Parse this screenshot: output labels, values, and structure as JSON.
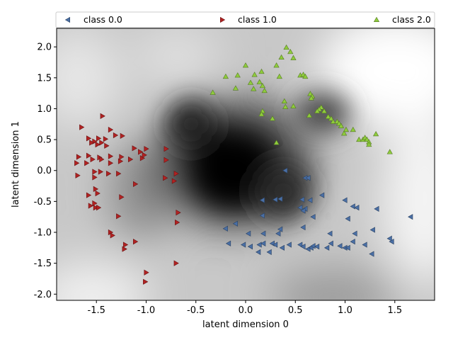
{
  "chart_data": {
    "type": "scatter",
    "title": "",
    "xlabel": "latent dimension 0",
    "ylabel": "latent dimension 1",
    "xlim": [
      -1.9,
      1.9
    ],
    "ylim": [
      -2.1,
      2.3
    ],
    "xticks": [
      "-1.5",
      "-1.0",
      "-0.5",
      "0.0",
      "0.5",
      "1.0",
      "1.5"
    ],
    "yticks": [
      "-2.0",
      "-1.5",
      "-1.0",
      "-0.5",
      "0.0",
      "0.5",
      "1.0",
      "1.5",
      "2.0"
    ],
    "legend_position": "top",
    "background": "grayscale density map, darkest near (0.0, -0.1)",
    "series": [
      {
        "name": "class 0.0",
        "marker": "triangle-left",
        "color": "#4a6fa5",
        "points": [
          [
            0.4,
            0.0
          ],
          [
            0.6,
            -0.12
          ],
          [
            0.63,
            -0.12
          ],
          [
            0.77,
            -0.4
          ],
          [
            0.17,
            -0.48
          ],
          [
            0.3,
            -0.47
          ],
          [
            0.35,
            -0.46
          ],
          [
            0.57,
            -0.47
          ],
          [
            0.65,
            -0.48
          ],
          [
            1.0,
            -0.48
          ],
          [
            0.55,
            -0.6
          ],
          [
            0.6,
            -0.62
          ],
          [
            0.58,
            -0.65
          ],
          [
            1.08,
            -0.58
          ],
          [
            1.12,
            -0.6
          ],
          [
            1.32,
            -0.62
          ],
          [
            1.66,
            -0.75
          ],
          [
            0.68,
            -0.75
          ],
          [
            1.03,
            -0.78
          ],
          [
            0.17,
            -0.73
          ],
          [
            -0.1,
            -0.86
          ],
          [
            -0.2,
            -0.94
          ],
          [
            0.35,
            -0.95
          ],
          [
            0.58,
            -0.92
          ],
          [
            1.28,
            -0.96
          ],
          [
            0.03,
            -1.02
          ],
          [
            0.18,
            -1.02
          ],
          [
            0.33,
            -1.02
          ],
          [
            0.85,
            -1.02
          ],
          [
            1.1,
            -1.02
          ],
          [
            -0.17,
            -1.18
          ],
          [
            -0.02,
            -1.2
          ],
          [
            0.05,
            -1.23
          ],
          [
            0.14,
            -1.2
          ],
          [
            0.18,
            -1.18
          ],
          [
            0.27,
            -1.18
          ],
          [
            0.3,
            -1.2
          ],
          [
            0.44,
            -1.2
          ],
          [
            0.37,
            -1.25
          ],
          [
            0.55,
            -1.2
          ],
          [
            0.58,
            -1.23
          ],
          [
            0.63,
            -1.27
          ],
          [
            0.66,
            -1.25
          ],
          [
            0.68,
            -1.22
          ],
          [
            0.72,
            -1.23
          ],
          [
            0.82,
            -1.25
          ],
          [
            0.86,
            -1.18
          ],
          [
            0.95,
            -1.22
          ],
          [
            1.0,
            -1.25
          ],
          [
            1.03,
            -1.25
          ],
          [
            1.08,
            -1.15
          ],
          [
            1.2,
            -1.2
          ],
          [
            1.45,
            -1.1
          ],
          [
            1.47,
            -1.15
          ],
          [
            1.27,
            -1.35
          ],
          [
            0.13,
            -1.32
          ],
          [
            0.24,
            -1.32
          ]
        ]
      },
      {
        "name": "class 1.0",
        "marker": "triangle-right",
        "color": "#b22222",
        "points": [
          [
            -1.44,
            0.88
          ],
          [
            -1.65,
            0.7
          ],
          [
            -1.36,
            0.66
          ],
          [
            -1.31,
            0.57
          ],
          [
            -1.24,
            0.56
          ],
          [
            -1.58,
            0.52
          ],
          [
            -1.48,
            0.52
          ],
          [
            -1.41,
            0.51
          ],
          [
            -1.52,
            0.47
          ],
          [
            -1.55,
            0.45
          ],
          [
            -1.45,
            0.45
          ],
          [
            -1.4,
            0.4
          ],
          [
            -1.49,
            0.42
          ],
          [
            -1.12,
            0.36
          ],
          [
            -1.0,
            0.35
          ],
          [
            -0.8,
            0.35
          ],
          [
            -1.06,
            0.3
          ],
          [
            -1.68,
            0.22
          ],
          [
            -1.58,
            0.24
          ],
          [
            -1.47,
            0.21
          ],
          [
            -1.36,
            0.23
          ],
          [
            -1.25,
            0.22
          ],
          [
            -1.54,
            0.18
          ],
          [
            -1.45,
            0.18
          ],
          [
            -1.26,
            0.15
          ],
          [
            -1.16,
            0.18
          ],
          [
            -1.04,
            0.2
          ],
          [
            -1.02,
            0.25
          ],
          [
            -0.8,
            0.17
          ],
          [
            -1.7,
            0.12
          ],
          [
            -1.6,
            0.12
          ],
          [
            -1.36,
            0.12
          ],
          [
            -1.52,
            -0.02
          ],
          [
            -1.46,
            -0.02
          ],
          [
            -1.38,
            -0.05
          ],
          [
            -1.28,
            -0.05
          ],
          [
            -0.7,
            -0.05
          ],
          [
            -1.69,
            -0.08
          ],
          [
            -1.52,
            -0.11
          ],
          [
            -0.81,
            -0.12
          ],
          [
            -0.72,
            -0.17
          ],
          [
            -1.11,
            -0.22
          ],
          [
            -1.51,
            -0.3
          ],
          [
            -1.58,
            -0.4
          ],
          [
            -1.49,
            -0.37
          ],
          [
            -1.25,
            -0.43
          ],
          [
            -1.52,
            -0.53
          ],
          [
            -1.56,
            -0.57
          ],
          [
            -1.51,
            -0.6
          ],
          [
            -1.48,
            -0.6
          ],
          [
            -0.68,
            -0.68
          ],
          [
            -1.28,
            -0.74
          ],
          [
            -0.69,
            -0.84
          ],
          [
            -1.36,
            -1.0
          ],
          [
            -1.34,
            -1.05
          ],
          [
            -1.11,
            -1.15
          ],
          [
            -1.21,
            -1.2
          ],
          [
            -1.22,
            -1.27
          ],
          [
            -0.7,
            -1.5
          ],
          [
            -1.0,
            -1.65
          ],
          [
            -1.01,
            -1.8
          ]
        ]
      },
      {
        "name": "class 2.0",
        "marker": "triangle-up",
        "color": "#8fcc3c",
        "points": [
          [
            0.41,
            1.99
          ],
          [
            0.45,
            1.92
          ],
          [
            0.36,
            1.83
          ],
          [
            0.48,
            1.82
          ],
          [
            0.0,
            1.7
          ],
          [
            0.31,
            1.7
          ],
          [
            -0.2,
            1.52
          ],
          [
            -0.08,
            1.54
          ],
          [
            0.16,
            1.6
          ],
          [
            0.09,
            1.55
          ],
          [
            0.34,
            1.52
          ],
          [
            0.55,
            1.54
          ],
          [
            0.58,
            1.55
          ],
          [
            0.6,
            1.52
          ],
          [
            0.05,
            1.42
          ],
          [
            0.14,
            1.43
          ],
          [
            0.17,
            1.37
          ],
          [
            -0.1,
            1.33
          ],
          [
            0.08,
            1.32
          ],
          [
            0.19,
            1.29
          ],
          [
            -0.33,
            1.26
          ],
          [
            0.65,
            1.24
          ],
          [
            0.67,
            1.2
          ],
          [
            0.66,
            1.17
          ],
          [
            0.39,
            1.12
          ],
          [
            0.4,
            1.03
          ],
          [
            0.48,
            1.04
          ],
          [
            0.76,
            1.02
          ],
          [
            0.74,
            0.99
          ],
          [
            0.72,
            0.96
          ],
          [
            0.79,
            0.96
          ],
          [
            0.17,
            0.96
          ],
          [
            0.16,
            0.91
          ],
          [
            0.64,
            0.89
          ],
          [
            0.83,
            0.87
          ],
          [
            0.86,
            0.84
          ],
          [
            0.88,
            0.79
          ],
          [
            0.92,
            0.79
          ],
          [
            0.94,
            0.76
          ],
          [
            0.96,
            0.72
          ],
          [
            1.01,
            0.66
          ],
          [
            1.08,
            0.66
          ],
          [
            0.99,
            0.6
          ],
          [
            1.14,
            0.5
          ],
          [
            1.18,
            0.5
          ],
          [
            1.2,
            0.53
          ],
          [
            1.22,
            0.5
          ],
          [
            1.24,
            0.46
          ],
          [
            1.24,
            0.42
          ],
          [
            1.31,
            0.59
          ],
          [
            0.27,
            0.84
          ],
          [
            0.31,
            0.45
          ],
          [
            1.45,
            0.3
          ]
        ]
      }
    ]
  }
}
